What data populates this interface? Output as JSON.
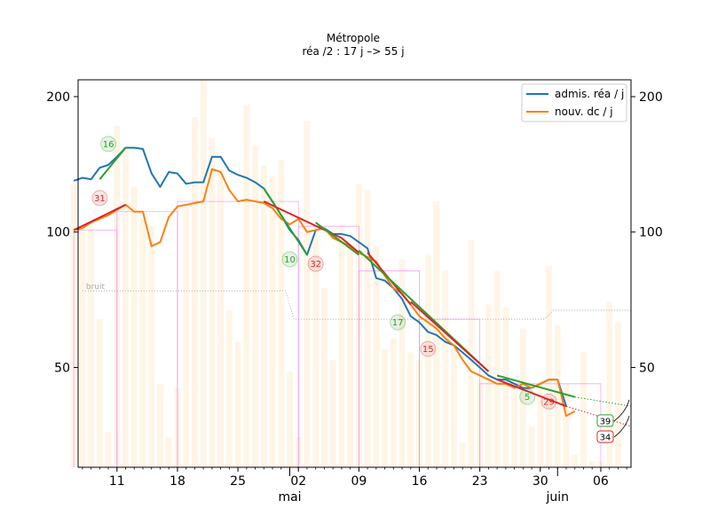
{
  "chart_data": {
    "type": "line",
    "title": "Métropole",
    "subtitle": "réa /2 : 17 j –> 55 j",
    "y_scale": "log",
    "ylim": [
      30,
      218
    ],
    "y_ticks": [
      50,
      100,
      200
    ],
    "x_ticks": [
      {
        "day": 11,
        "label": "11"
      },
      {
        "day": 18,
        "label": "18"
      },
      {
        "day": 25,
        "label": "25"
      },
      {
        "day": 32,
        "label": "02"
      },
      {
        "day": 39,
        "label": "09"
      },
      {
        "day": 46,
        "label": "16"
      },
      {
        "day": 53,
        "label": "23"
      },
      {
        "day": 60,
        "label": "30"
      },
      {
        "day": 67,
        "label": "06"
      }
    ],
    "x_month_labels": [
      {
        "day": 31,
        "label": "mai"
      },
      {
        "day": 62,
        "label": "juin"
      }
    ],
    "xlim": [
      6.5,
      70.5
    ],
    "legend_position": "top-right",
    "colors": {
      "admis": "#1f77b4",
      "dc": "#ff7f0e",
      "fit_green": "#2ca02c",
      "fit_red": "#d62728",
      "bars": "#fff5e6",
      "boxes": "#ee82ee",
      "noise": "#999999"
    },
    "series": [
      {
        "name": "admis. réa / j",
        "key": "admis",
        "x": [
          6,
          7,
          8,
          9,
          10,
          11,
          12,
          13,
          14,
          15,
          16,
          17,
          18,
          19,
          20,
          21,
          22,
          23,
          24,
          25,
          26,
          27,
          28,
          29,
          30,
          31,
          32,
          33,
          34,
          35,
          36,
          37,
          38,
          39,
          40,
          41,
          42,
          43,
          44,
          45,
          46,
          47,
          48,
          49,
          50,
          51,
          52,
          53,
          54,
          55,
          56,
          57,
          58,
          59,
          60,
          61,
          62,
          63
        ],
        "y": [
          130,
          132,
          131,
          139,
          141,
          147,
          154,
          154,
          153,
          135,
          126,
          136,
          135,
          128,
          129,
          129,
          147,
          147,
          137,
          134,
          132,
          129,
          125,
          117,
          109,
          101,
          96,
          89,
          101,
          102,
          99,
          99,
          98,
          95,
          92,
          79,
          78,
          75,
          71,
          65,
          63,
          60,
          59,
          57,
          56,
          54,
          52,
          50,
          48,
          47,
          47,
          46,
          45,
          45,
          46,
          47,
          47,
          41
        ],
        "stroke_width": 2
      },
      {
        "name": "nouv. dc / j",
        "key": "dc",
        "x": [
          6,
          7,
          8,
          9,
          10,
          11,
          12,
          13,
          14,
          15,
          16,
          17,
          18,
          19,
          20,
          21,
          22,
          23,
          24,
          25,
          26,
          27,
          28,
          29,
          30,
          31,
          32,
          33,
          34,
          35,
          36,
          37,
          38,
          39,
          40,
          41,
          42,
          43,
          44,
          45,
          46,
          47,
          48,
          49,
          50,
          51,
          52,
          53,
          54,
          55,
          56,
          57,
          58,
          59,
          60,
          61,
          62,
          63,
          64
        ],
        "y": [
          101,
          102,
          105,
          107,
          109,
          112,
          115,
          111,
          111,
          93,
          95,
          108,
          114,
          115,
          116,
          117,
          138,
          136,
          124,
          117,
          118,
          117,
          116,
          113,
          107,
          104,
          107,
          100,
          101,
          102,
          97,
          95,
          93,
          90,
          88,
          86,
          80,
          75,
          73,
          69,
          65,
          63,
          61,
          58,
          56,
          52,
          49,
          48,
          47,
          46,
          46,
          45,
          46,
          45,
          46,
          47,
          47,
          39,
          40
        ],
        "stroke_width": 2
      }
    ],
    "bars": {
      "x": [
        6,
        7,
        8,
        9,
        10,
        11,
        12,
        13,
        14,
        15,
        16,
        17,
        18,
        19,
        20,
        21,
        22,
        23,
        24,
        25,
        26,
        27,
        28,
        29,
        30,
        31,
        32,
        33,
        34,
        35,
        36,
        37,
        38,
        39,
        40,
        41,
        42,
        43,
        44,
        45,
        46,
        47,
        48,
        49,
        50,
        51,
        52,
        53,
        54,
        55,
        56,
        57,
        58,
        59,
        60,
        61,
        62,
        63,
        64,
        65,
        66,
        67,
        68,
        69
      ],
      "y": [
        128,
        100,
        103,
        64,
        36,
        172,
        155,
        126,
        108,
        103,
        46,
        35,
        45,
        115,
        180,
        218,
        162,
        138,
        67,
        57,
        192,
        155,
        141,
        133,
        145,
        49,
        35,
        177,
        98,
        75,
        52,
        104,
        93,
        128,
        124,
        93,
        55,
        58,
        87,
        54,
        52,
        89,
        117,
        82,
        57,
        34,
        96,
        47,
        69,
        82,
        68,
        44,
        61,
        37,
        46,
        84,
        62,
        46,
        32,
        54,
        31,
        31,
        70,
        63
      ],
      "baseline": 30
    },
    "fits": [
      {
        "color": "green",
        "x": [
          9,
          12
        ],
        "y": [
          131,
          154
        ]
      },
      {
        "color": "red",
        "x": [
          6,
          12
        ],
        "y": [
          101,
          115
        ]
      },
      {
        "color": "green",
        "x": [
          28,
          33
        ],
        "y": [
          125,
          89
        ]
      },
      {
        "color": "red",
        "x": [
          28,
          37
        ],
        "y": [
          117,
          97
        ]
      },
      {
        "color": "green",
        "x": [
          34,
          39
        ],
        "y": [
          105,
          89
        ]
      },
      {
        "color": "red",
        "x": [
          37,
          39
        ],
        "y": [
          97,
          90
        ]
      },
      {
        "color": "red",
        "x": [
          40,
          45
        ],
        "y": [
          90,
          69
        ]
      },
      {
        "color": "green",
        "x": [
          39,
          54
        ],
        "y": [
          91,
          49
        ]
      },
      {
        "color": "red",
        "x": [
          45,
          54
        ],
        "y": [
          70,
          49
        ]
      },
      {
        "color": "green",
        "x": [
          55,
          64
        ],
        "y": [
          48,
          43
        ]
      },
      {
        "color": "red",
        "x": [
          55,
          63
        ],
        "y": [
          47,
          41
        ]
      }
    ],
    "projections": [
      {
        "color": "green",
        "x": [
          64,
          70.5
        ],
        "y": [
          43,
          41
        ]
      },
      {
        "color": "red",
        "x": [
          63,
          70.5
        ],
        "y": [
          41,
          37
        ]
      }
    ],
    "boxes": [
      {
        "x": [
          6,
          11
        ],
        "y": 101
      },
      {
        "x": [
          11,
          18
        ],
        "y": 111
      },
      {
        "x": [
          18,
          32
        ],
        "y": 117
      },
      {
        "x": [
          32,
          39
        ],
        "y": 103
      },
      {
        "x": [
          39,
          46
        ],
        "y": 82
      },
      {
        "x": [
          46,
          53
        ],
        "y": 64
      },
      {
        "x": [
          53,
          67
        ],
        "y": 46
      }
    ],
    "noise": {
      "label": "bruit",
      "x": [
        7,
        30.5,
        31.5,
        60.5,
        61.5,
        70.5
      ],
      "y": [
        74,
        74,
        64,
        64,
        67,
        67
      ]
    },
    "bubbles": [
      {
        "label": "16",
        "day": 10,
        "value": 157,
        "color": "green"
      },
      {
        "label": "31",
        "day": 9,
        "value": 119,
        "color": "red"
      },
      {
        "label": "10",
        "day": 31,
        "value": 87,
        "color": "green"
      },
      {
        "label": "32",
        "day": 34,
        "value": 85,
        "color": "red"
      },
      {
        "label": "17",
        "day": 43.5,
        "value": 63,
        "color": "green"
      },
      {
        "label": "15",
        "day": 47,
        "value": 55,
        "color": "red"
      },
      {
        "label": "5",
        "day": 58.5,
        "value": 43,
        "color": "green"
      },
      {
        "label": "29",
        "day": 61,
        "value": 42,
        "color": "red"
      }
    ],
    "end_boxes": [
      {
        "label": "39",
        "day": 67,
        "value": 38,
        "color": "green"
      },
      {
        "label": "34",
        "day": 67,
        "value": 35,
        "color": "red"
      }
    ]
  }
}
